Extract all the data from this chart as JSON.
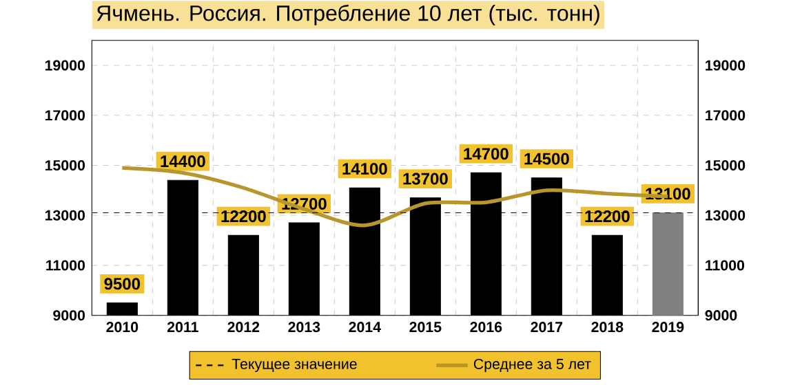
{
  "chart_data": {
    "type": "bar",
    "title": "Ячмень. Россия. Потребление 10 лет (тыс. тонн)",
    "categories": [
      "2010",
      "2011",
      "2012",
      "2013",
      "2014",
      "2015",
      "2016",
      "2017",
      "2018",
      "2019"
    ],
    "series": [
      {
        "colors": [
          "#000000",
          "#000000",
          "#000000",
          "#000000",
          "#000000",
          "#000000",
          "#000000",
          "#000000",
          "#000000",
          "#808080"
        ],
        "values": [
          9500,
          14400,
          12200,
          12700,
          14100,
          13700,
          14700,
          14500,
          12200,
          13100
        ],
        "value_labels": [
          "9500",
          "14400",
          "12200",
          "12700",
          "14100",
          "13700",
          "14700",
          "14500",
          "12200",
          "13100"
        ]
      },
      {
        "type": "line",
        "name": "Среднее за 5 лет",
        "color": "#b8962e",
        "values": [
          14900,
          14700,
          14100,
          13250,
          12600,
          13480,
          13520,
          14000,
          13870,
          13750
        ]
      }
    ],
    "ref_lines": [
      {
        "axis": "y",
        "value": 13100,
        "label": "Текущее значение",
        "line_style": "dashed",
        "color": "#000000"
      }
    ],
    "ylim": [
      9000,
      20000
    ],
    "yticks": [
      9000,
      11000,
      13000,
      15000,
      17000,
      19000
    ],
    "y2lim": [
      9000,
      20000
    ],
    "y2ticks": [
      9000,
      11000,
      13000,
      15000,
      17000,
      19000
    ],
    "grid": true,
    "legend": "bottom",
    "marker": "none"
  }
}
